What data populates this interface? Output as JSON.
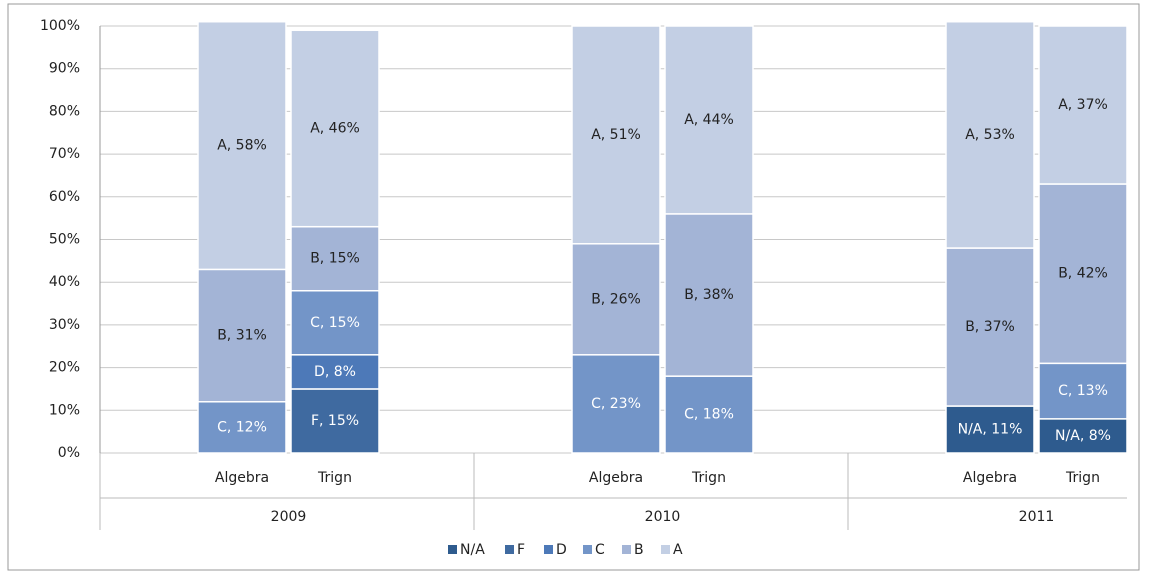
{
  "chart_data": {
    "type": "stacked_bar",
    "categories": [
      "Algebra",
      "Trign",
      "Algebra",
      "Trign",
      "Algebra",
      "Trign"
    ],
    "groups": [
      "2009",
      "2010",
      "2011"
    ],
    "series": [
      {
        "name": "N/A",
        "color": "#2e5b8e",
        "label_color": "#ffffff",
        "values": [
          null,
          null,
          null,
          null,
          11,
          8
        ],
        "value_labels": [
          null,
          null,
          null,
          null,
          "N/A, 11%",
          "N/A, 8%"
        ]
      },
      {
        "name": "F",
        "color": "#3f6aa0",
        "label_color": "#ffffff",
        "values": [
          null,
          15,
          null,
          null,
          null,
          null
        ],
        "value_labels": [
          null,
          "F, 15%",
          null,
          null,
          null,
          null
        ]
      },
      {
        "name": "D",
        "color": "#4d79b8",
        "label_color": "#ffffff",
        "values": [
          null,
          8,
          null,
          null,
          null,
          null
        ],
        "value_labels": [
          null,
          "D, 8%",
          null,
          null,
          null,
          null
        ]
      },
      {
        "name": "C",
        "color": "#7395c8",
        "label_color": "#ffffff",
        "values": [
          12,
          15,
          23,
          18,
          null,
          13
        ],
        "value_labels": [
          "C, 12%",
          "C, 15%",
          "C, 23%",
          "C, 18%",
          null,
          "C, 13%"
        ]
      },
      {
        "name": "B",
        "color": "#a3b4d6",
        "label_color": "#222222",
        "values": [
          31,
          15,
          26,
          38,
          37,
          42
        ],
        "value_labels": [
          "B, 31%",
          "B, 15%",
          "B, 26%",
          "B, 38%",
          "B, 37%",
          "B, 42%"
        ]
      },
      {
        "name": "A",
        "color": "#c3cfe4",
        "label_color": "#222222",
        "values": [
          58,
          46,
          51,
          44,
          53,
          37
        ],
        "value_labels": [
          "A, 58%",
          "A, 46%",
          "A, 51%",
          "A, 44%",
          "A, 53%",
          "A, 37%"
        ]
      }
    ],
    "ylim": [
      0,
      100
    ],
    "yticks": [
      {
        "value": 0,
        "label": "0%"
      },
      {
        "value": 10,
        "label": "10%"
      },
      {
        "value": 20,
        "label": "20%"
      },
      {
        "value": 30,
        "label": "30%"
      },
      {
        "value": 40,
        "label": "40%"
      },
      {
        "value": 50,
        "label": "50%"
      },
      {
        "value": 60,
        "label": "60%"
      },
      {
        "value": 70,
        "label": "70%"
      },
      {
        "value": 80,
        "label": "80%"
      },
      {
        "value": 90,
        "label": "90%"
      },
      {
        "value": 100,
        "label": "100%"
      }
    ],
    "grid": true,
    "legend": "bottom"
  }
}
